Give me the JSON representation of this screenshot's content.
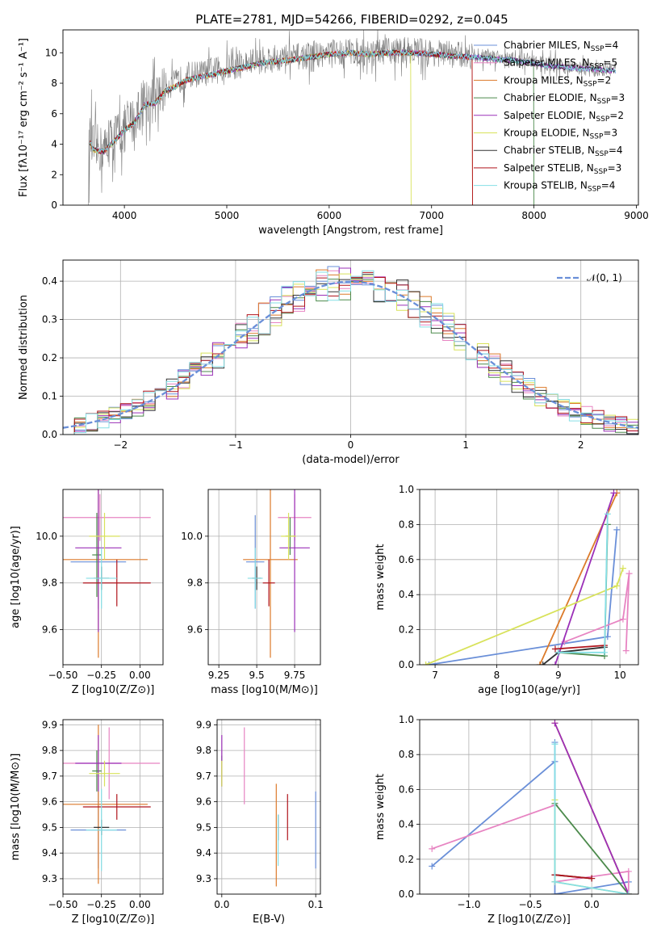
{
  "figure": {
    "title": "PLATE=2781, MJD=54266, FIBERID=0292, z=0.045"
  },
  "models": [
    {
      "name": "Chabrier MILES",
      "nssp": "4",
      "color": "#6a8fd8"
    },
    {
      "name": "Salpeter MILES",
      "nssp": "5",
      "color": "#e784c2"
    },
    {
      "name": "Kroupa MILES",
      "nssp": "2",
      "color": "#dc7a2a"
    },
    {
      "name": "Chabrier ELODIE",
      "nssp": "3",
      "color": "#4c8a4c"
    },
    {
      "name": "Salpeter ELODIE",
      "nssp": "2",
      "color": "#9b30b8"
    },
    {
      "name": "Kroupa ELODIE",
      "nssp": "3",
      "color": "#d8e25a"
    },
    {
      "name": "Chabrier STELIB",
      "nssp": "4",
      "color": "#333333"
    },
    {
      "name": "Salpeter STELIB",
      "nssp": "3",
      "color": "#b0141c"
    },
    {
      "name": "Kroupa STELIB",
      "nssp": "4",
      "color": "#86dfe6"
    }
  ],
  "chart_data": [
    {
      "id": "spectrum",
      "type": "line",
      "xlabel": "wavelength [Angstrom, rest frame]",
      "ylabel": "Flux [fλ10⁻¹⁷ erg cm⁻² s⁻¹ A⁻¹]",
      "xlim": [
        3400,
        9020
      ],
      "ylim": [
        0,
        11.5
      ],
      "xticks": [
        4000,
        5000,
        6000,
        7000,
        8000,
        9000
      ],
      "yticks": [
        0,
        2,
        4,
        6,
        8,
        10
      ],
      "grid": false,
      "legend": "top-right",
      "data_color": "#808080",
      "data_anchors": [
        [
          3650,
          0
        ],
        [
          3660,
          4.5
        ],
        [
          3700,
          3.8
        ],
        [
          3800,
          3.6
        ],
        [
          3900,
          4.5
        ],
        [
          4000,
          5.0
        ],
        [
          4100,
          5.7
        ],
        [
          4200,
          7.0
        ],
        [
          4300,
          6.8
        ],
        [
          4400,
          7.8
        ],
        [
          4500,
          8.0
        ],
        [
          4600,
          8.5
        ],
        [
          4800,
          8.7
        ],
        [
          5000,
          9.0
        ],
        [
          5200,
          9.3
        ],
        [
          5400,
          9.6
        ],
        [
          5600,
          9.7
        ],
        [
          5800,
          9.8
        ],
        [
          6000,
          10.0
        ],
        [
          6200,
          10.1
        ],
        [
          6400,
          10.0
        ],
        [
          6600,
          10.1
        ],
        [
          6800,
          10.2
        ],
        [
          7000,
          10.0
        ],
        [
          7200,
          9.9
        ],
        [
          7400,
          9.8
        ],
        [
          7600,
          9.8
        ],
        [
          7800,
          9.6
        ],
        [
          8000,
          9.4
        ],
        [
          8200,
          9.2
        ],
        [
          8400,
          9.0
        ],
        [
          8600,
          8.9
        ],
        [
          8800,
          8.9
        ]
      ],
      "model_anchors": [
        [
          3660,
          4.2
        ],
        [
          3700,
          3.6
        ],
        [
          3800,
          3.5
        ],
        [
          3900,
          4.2
        ],
        [
          4000,
          4.9
        ],
        [
          4100,
          5.4
        ],
        [
          4200,
          6.6
        ],
        [
          4300,
          6.7
        ],
        [
          4400,
          7.5
        ],
        [
          4500,
          7.8
        ],
        [
          4600,
          8.2
        ],
        [
          4800,
          8.5
        ],
        [
          5000,
          8.8
        ],
        [
          5200,
          9.1
        ],
        [
          5400,
          9.4
        ],
        [
          5600,
          9.5
        ],
        [
          5800,
          9.7
        ],
        [
          6000,
          9.9
        ],
        [
          6200,
          10.0
        ],
        [
          6400,
          9.9
        ],
        [
          6600,
          10.0
        ],
        [
          6800,
          10.0
        ],
        [
          7000,
          9.9
        ],
        [
          7200,
          9.8
        ],
        [
          7400,
          9.7
        ],
        [
          7600,
          9.6
        ],
        [
          7800,
          9.5
        ],
        [
          8000,
          9.3
        ],
        [
          8200,
          9.1
        ],
        [
          8400,
          9.0
        ],
        [
          8600,
          8.9
        ],
        [
          8800,
          8.8
        ]
      ],
      "model_ranges": [
        [
          3660,
          8800
        ],
        [
          3660,
          8800
        ],
        [
          3660,
          7400
        ],
        [
          3660,
          8000
        ],
        [
          3660,
          8800
        ],
        [
          3660,
          6800
        ],
        [
          3660,
          8800
        ],
        [
          3660,
          7400
        ],
        [
          3660,
          8800
        ]
      ]
    },
    {
      "id": "residuals",
      "type": "line",
      "xlabel": "(data-model)/error",
      "ylabel": "Normed distribution",
      "xlim": [
        -2.5,
        2.5
      ],
      "ylim": [
        0,
        0.455
      ],
      "xticks": [
        -2,
        -1,
        0,
        1,
        2
      ],
      "yticks": [
        0.0,
        0.1,
        0.2,
        0.3,
        0.4
      ],
      "grid": true,
      "legend": "top-right",
      "curve": {
        "name": "𝒩(0, 1)",
        "color": "#6a8fd8",
        "mu": 0,
        "sigma": 1
      },
      "bin_width": 0.1,
      "x_start": -2.5
    },
    {
      "id": "age-vs-Z",
      "type": "scatter",
      "xlabel": "Z [log10(Z/Z⊙)]",
      "ylabel": "age  [log10(age/yr)]",
      "xlim": [
        -0.5,
        0.15
      ],
      "ylim": [
        9.45,
        10.2
      ],
      "xticks": [
        -0.5,
        -0.25,
        0.0
      ],
      "yticks": [
        9.6,
        9.8,
        10.0
      ],
      "grid": true,
      "points": [
        {
          "x": -0.27,
          "y": 9.89,
          "xerr": 0.18,
          "yerr": 0.2,
          "model": 0
        },
        {
          "x": -0.26,
          "y": 10.08,
          "xerr": 0.33,
          "yerr": 0.1,
          "model": 1
        },
        {
          "x": -0.27,
          "y": 9.9,
          "xerr": 0.32,
          "yerr": 0.42,
          "model": 2
        },
        {
          "x": -0.28,
          "y": 9.92,
          "xerr": 0.03,
          "yerr": 0.18,
          "model": 3
        },
        {
          "x": -0.27,
          "y": 9.95,
          "xerr": 0.15,
          "yerr": 0.36,
          "model": 4
        },
        {
          "x": -0.23,
          "y": 10.0,
          "xerr": 0.1,
          "yerr": 0.1,
          "model": 5
        },
        {
          "x": -0.25,
          "y": 9.82,
          "xerr": 0.05,
          "yerr": 0.05,
          "model": 6
        },
        {
          "x": -0.15,
          "y": 9.8,
          "xerr": 0.22,
          "yerr": 0.1,
          "model": 7
        },
        {
          "x": -0.25,
          "y": 9.82,
          "xerr": 0.1,
          "yerr": 0.13,
          "model": 8
        }
      ]
    },
    {
      "id": "age-vs-mass",
      "type": "scatter",
      "xlabel": "mass [log10(M/M⊙)]",
      "ylabel": "",
      "xlim": [
        9.18,
        9.92
      ],
      "ylim": [
        9.45,
        10.2
      ],
      "xticks": [
        9.25,
        9.5,
        9.75
      ],
      "yticks": [
        9.6,
        9.8,
        10.0
      ],
      "grid": true,
      "points": [
        {
          "x": 9.49,
          "y": 9.89,
          "xerr": 0.06,
          "yerr": 0.2,
          "model": 0
        },
        {
          "x": 9.75,
          "y": 10.08,
          "xerr": 0.11,
          "yerr": 0.1,
          "model": 1
        },
        {
          "x": 9.59,
          "y": 9.9,
          "xerr": 0.18,
          "yerr": 0.42,
          "model": 2
        },
        {
          "x": 9.72,
          "y": 10.0,
          "xerr": 0.03,
          "yerr": 0.08,
          "model": 3
        },
        {
          "x": 9.75,
          "y": 9.95,
          "xerr": 0.1,
          "yerr": 0.36,
          "model": 4
        },
        {
          "x": 9.71,
          "y": 10.0,
          "xerr": 0.05,
          "yerr": 0.1,
          "model": 5
        },
        {
          "x": 9.5,
          "y": 9.82,
          "xerr": 0.03,
          "yerr": 0.05,
          "model": 6
        },
        {
          "x": 9.58,
          "y": 9.8,
          "xerr": 0.04,
          "yerr": 0.1,
          "model": 7
        },
        {
          "x": 9.49,
          "y": 9.82,
          "xerr": 0.05,
          "yerr": 0.13,
          "model": 8
        }
      ]
    },
    {
      "id": "weight-vs-age",
      "type": "line",
      "xlabel": "age  [log10(age/yr)]",
      "ylabel": "mass weight",
      "xlim": [
        6.75,
        10.3
      ],
      "ylim": [
        0,
        1.0
      ],
      "xticks": [
        7,
        8,
        9,
        10
      ],
      "yticks": [
        0.0,
        0.2,
        0.4,
        0.6,
        0.8,
        1.0
      ],
      "grid": true,
      "series": [
        {
          "model": 0,
          "points": [
            [
              6.9,
              0.0
            ],
            [
              9.8,
              0.16
            ],
            [
              9.95,
              0.77
            ]
          ]
        },
        {
          "model": 1,
          "points": [
            [
              9.1,
              0.13
            ],
            [
              10.05,
              0.26
            ],
            [
              10.15,
              0.52
            ],
            [
              10.1,
              0.08
            ]
          ]
        },
        {
          "model": 2,
          "points": [
            [
              8.7,
              0.0
            ],
            [
              9.95,
              0.98
            ]
          ]
        },
        {
          "model": 3,
          "points": [
            [
              9.0,
              0.07
            ],
            [
              9.75,
              0.05
            ],
            [
              9.8,
              0.8
            ]
          ]
        },
        {
          "model": 4,
          "points": [
            [
              8.95,
              0.0
            ],
            [
              9.9,
              0.98
            ]
          ]
        },
        {
          "model": 5,
          "points": [
            [
              6.85,
              0.0
            ],
            [
              9.95,
              0.45
            ],
            [
              10.05,
              0.55
            ]
          ]
        },
        {
          "model": 6,
          "points": [
            [
              8.75,
              0.0
            ],
            [
              9.0,
              0.07
            ],
            [
              9.75,
              0.1
            ]
          ]
        },
        {
          "model": 7,
          "points": [
            [
              8.95,
              0.09
            ],
            [
              9.75,
              0.11
            ]
          ]
        },
        {
          "model": 8,
          "points": [
            [
              9.0,
              0.07
            ],
            [
              9.75,
              0.07
            ],
            [
              9.8,
              0.86
            ]
          ]
        }
      ]
    },
    {
      "id": "mass-vs-Z",
      "type": "scatter",
      "xlabel": "Z [log10(Z/Z⊙)]",
      "ylabel": "mass [log10(M/M⊙)]",
      "xlim": [
        -0.5,
        0.15
      ],
      "ylim": [
        9.24,
        9.92
      ],
      "xticks": [
        -0.5,
        -0.25,
        0.0
      ],
      "yticks": [
        9.3,
        9.4,
        9.5,
        9.6,
        9.7,
        9.8,
        9.9
      ],
      "grid": true,
      "points": [
        {
          "x": -0.27,
          "y": 9.49,
          "xerr": 0.18,
          "yerr": 0.15,
          "model": 0
        },
        {
          "x": -0.2,
          "y": 9.75,
          "xerr": 0.33,
          "yerr": 0.14,
          "model": 1
        },
        {
          "x": -0.27,
          "y": 9.59,
          "xerr": 0.32,
          "yerr": 0.31,
          "model": 2
        },
        {
          "x": -0.28,
          "y": 9.72,
          "xerr": 0.03,
          "yerr": 0.08,
          "model": 3
        },
        {
          "x": -0.27,
          "y": 9.75,
          "xerr": 0.15,
          "yerr": 0.11,
          "model": 4
        },
        {
          "x": -0.23,
          "y": 9.71,
          "xerr": 0.1,
          "yerr": 0.05,
          "model": 5
        },
        {
          "x": -0.25,
          "y": 9.5,
          "xerr": 0.05,
          "yerr": 0.03,
          "model": 6
        },
        {
          "x": -0.15,
          "y": 9.58,
          "xerr": 0.22,
          "yerr": 0.05,
          "model": 7
        },
        {
          "x": -0.25,
          "y": 9.49,
          "xerr": 0.1,
          "yerr": 0.16,
          "model": 8
        }
      ]
    },
    {
      "id": "mass-vs-ebv",
      "type": "scatter",
      "xlabel": "E(B-V)",
      "ylabel": "",
      "xlim": [
        -0.005,
        0.105
      ],
      "ylim": [
        9.24,
        9.92
      ],
      "xticks": [
        0.0,
        0.1
      ],
      "yticks": [
        9.3,
        9.4,
        9.5,
        9.6,
        9.7,
        9.8,
        9.9
      ],
      "grid": true,
      "points": [
        {
          "x": 0.1,
          "y": 9.49,
          "yerr": 0.15,
          "model": 0
        },
        {
          "x": 0.024,
          "y": 9.74,
          "yerr": 0.15,
          "model": 1
        },
        {
          "x": 0.058,
          "y": 9.47,
          "yerr": 0.2,
          "model": 2
        },
        {
          "x": 0.0,
          "y": 9.72,
          "yerr": 0.06,
          "model": 3
        },
        {
          "x": 0.0,
          "y": 9.76,
          "yerr": 0.1,
          "model": 4
        },
        {
          "x": 0.0,
          "y": 9.71,
          "yerr": 0.05,
          "model": 5
        },
        {
          "x": 0.06,
          "y": 9.5,
          "yerr": 0.05,
          "model": 6
        },
        {
          "x": 0.07,
          "y": 9.54,
          "yerr": 0.09,
          "model": 7
        },
        {
          "x": 0.06,
          "y": 9.45,
          "yerr": 0.1,
          "model": 8
        }
      ]
    },
    {
      "id": "weight-vs-Z",
      "type": "line",
      "xlabel": "Z [log10(Z/Z⊙)]",
      "ylabel": "mass weight",
      "xlim": [
        -1.4,
        0.38
      ],
      "ylim": [
        0,
        1.0
      ],
      "xticks": [
        -1.0,
        -0.5,
        0.0
      ],
      "yticks": [
        0.0,
        0.2,
        0.4,
        0.6,
        0.8,
        1.0
      ],
      "grid": true,
      "series": [
        {
          "model": 0,
          "points": [
            [
              -1.3,
              0.16
            ],
            [
              -0.3,
              0.76
            ],
            [
              -0.3,
              0.87
            ],
            [
              -0.3,
              0.0
            ],
            [
              0.3,
              0.07
            ]
          ]
        },
        {
          "model": 1,
          "points": [
            [
              -1.3,
              0.26
            ],
            [
              -0.3,
              0.51
            ],
            [
              -0.3,
              0.07
            ],
            [
              0.3,
              0.13
            ],
            [
              0.3,
              0.0
            ]
          ]
        },
        {
          "model": 2,
          "points": [
            [
              -0.3,
              0.98
            ],
            [
              0.3,
              0.0
            ]
          ]
        },
        {
          "model": 3,
          "points": [
            [
              -0.3,
              0.07
            ],
            [
              -0.3,
              0.52
            ],
            [
              0.3,
              0.0
            ]
          ]
        },
        {
          "model": 4,
          "points": [
            [
              -0.3,
              0.98
            ],
            [
              0.3,
              0.0
            ]
          ]
        },
        {
          "model": 5,
          "points": [
            [
              -0.3,
              0.54
            ],
            [
              -0.3,
              0.07
            ],
            [
              0.3,
              0.0
            ]
          ]
        },
        {
          "model": 6,
          "points": [
            [
              -0.3,
              0.11
            ],
            [
              0.0,
              0.09
            ]
          ]
        },
        {
          "model": 7,
          "points": [
            [
              -0.3,
              0.11
            ],
            [
              0.0,
              0.09
            ]
          ]
        },
        {
          "model": 8,
          "points": [
            [
              -0.3,
              0.86
            ],
            [
              -0.3,
              0.07
            ],
            [
              0.3,
              0.0
            ]
          ]
        }
      ]
    }
  ]
}
